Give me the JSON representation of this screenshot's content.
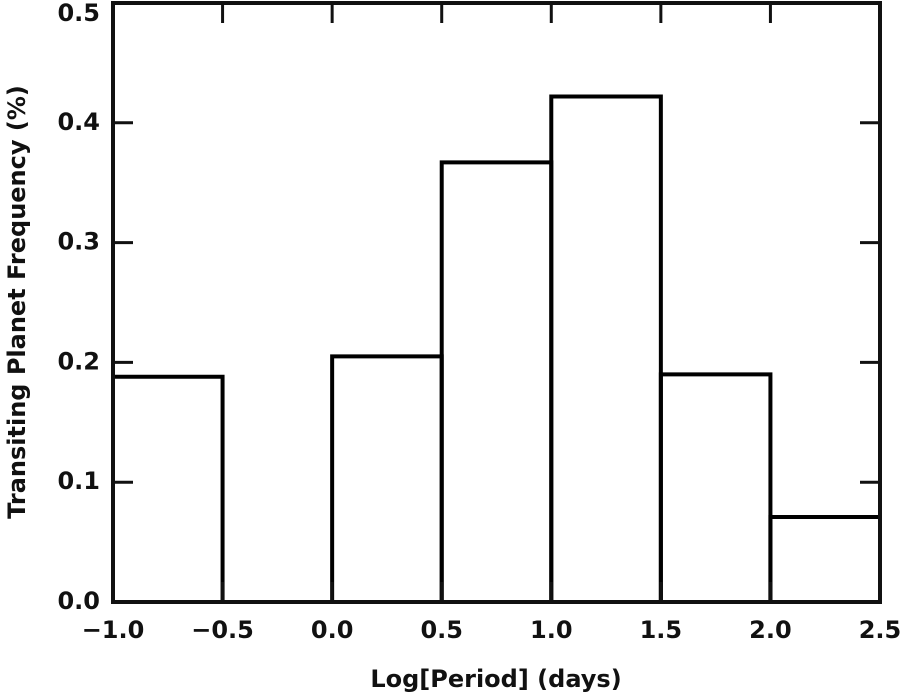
{
  "chart_data": {
    "type": "histogram",
    "xlabel": "Log[Period] (days)",
    "ylabel": "Transiting Planet Frequency (%)",
    "bins": [
      -1.0,
      -0.5,
      0.0,
      0.5,
      1.0,
      1.5,
      2.0,
      2.5
    ],
    "values": [
      0.188,
      0,
      0.205,
      0.367,
      0.422,
      0.19,
      0.071
    ],
    "color": "#000000",
    "xlim": [
      -1.0,
      2.5
    ],
    "ylim": [
      0,
      0.5
    ],
    "xticks": [
      {
        "value": -1.0,
        "label": "−1.0"
      },
      {
        "value": -0.5,
        "label": "−0.5"
      },
      {
        "value": 0,
        "label": "0.0"
      },
      0.5,
      {
        "value": 1,
        "label": "1.0"
      },
      1.5,
      {
        "value": 2,
        "label": "2.0"
      },
      2.5
    ],
    "yticks": [
      {
        "value": 0,
        "label": "0.0"
      },
      0.1,
      0.2,
      0.3,
      0.4,
      0.5
    ]
  }
}
